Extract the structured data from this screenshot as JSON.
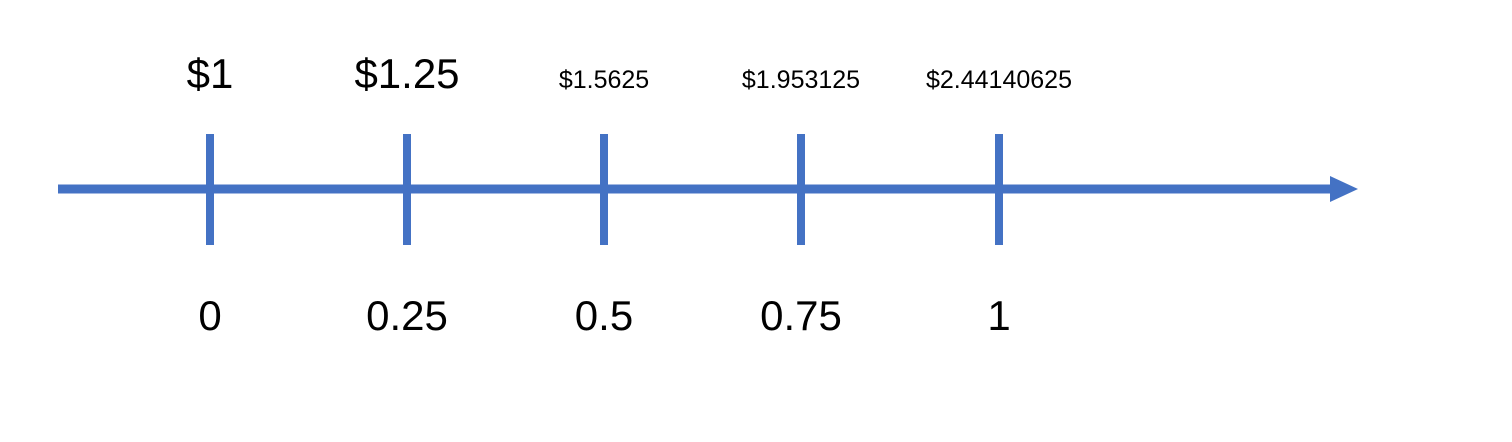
{
  "timeline": {
    "axis_color": "#4472C4",
    "text_color": "#000000",
    "points": [
      {
        "time": "0",
        "value": "$1"
      },
      {
        "time": "0.25",
        "value": "$1.25"
      },
      {
        "time": "0.5",
        "value": "$1.5625"
      },
      {
        "time": "0.75",
        "value": "$1.953125"
      },
      {
        "time": "1",
        "value": "$2.44140625"
      }
    ]
  }
}
